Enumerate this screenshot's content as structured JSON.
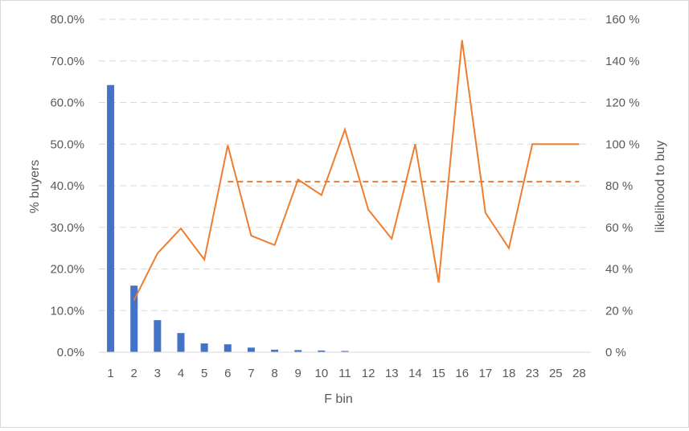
{
  "chart_data": {
    "type": "bar+line",
    "title": "",
    "xlabel": "F bin",
    "ylabel_left": "% buyers",
    "ylabel_right": "likelihood to buy",
    "categories": [
      "1",
      "2",
      "3",
      "4",
      "5",
      "6",
      "7",
      "8",
      "9",
      "10",
      "11",
      "12",
      "13",
      "14",
      "15",
      "16",
      "17",
      "18",
      "23",
      "25",
      "28"
    ],
    "ylim_left": [
      0,
      80
    ],
    "ylim_right": [
      0,
      160
    ],
    "left_ticks": [
      "0.0%",
      "10.0%",
      "20.0%",
      "30.0%",
      "40.0%",
      "50.0%",
      "60.0%",
      "70.0%",
      "80.0%"
    ],
    "right_ticks": [
      "0 %",
      "20 %",
      "40 %",
      "60 %",
      "80 %",
      "100 %",
      "120 %",
      "140 %",
      "160 %"
    ],
    "grid": "horizontal dashed",
    "legend": "none",
    "series": [
      {
        "kind": "bar",
        "axis": "left",
        "color": "#4472c4",
        "values": [
          64.2,
          16.0,
          7.7,
          4.6,
          2.1,
          1.9,
          1.1,
          0.6,
          0.5,
          0.4,
          0.3,
          0,
          0,
          0,
          0,
          0,
          0,
          0,
          0,
          0,
          0
        ]
      },
      {
        "kind": "line",
        "axis": "right",
        "color": "#ed7d31",
        "values": [
          null,
          25,
          47.5,
          59.5,
          44.5,
          99.5,
          56,
          51.5,
          83,
          75.5,
          107,
          68.5,
          54.5,
          100,
          33.5,
          150,
          67,
          50,
          100,
          100,
          100
        ]
      },
      {
        "kind": "reference-line",
        "axis": "right",
        "color": "#ed7d31",
        "style": "dashed",
        "value": 82,
        "from_category": "6",
        "to_category": "28"
      }
    ]
  }
}
